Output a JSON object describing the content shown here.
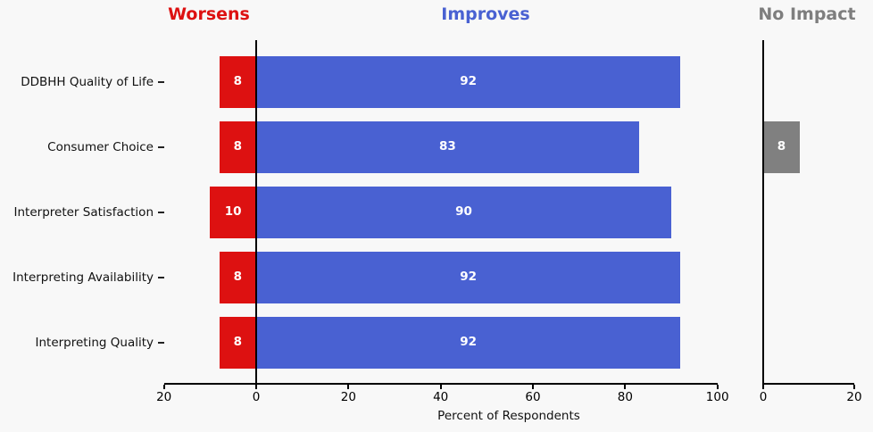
{
  "colors": {
    "background": "#f8f8f8",
    "worsens": "#dd1111",
    "improves": "#4961d2",
    "no_impact": "#808080",
    "no_impact_title": "#7e7e7e",
    "axis": "#000000",
    "category_text": "#111111",
    "value_text": "#ffffff"
  },
  "chart_data": {
    "type": "bar",
    "orientation": "horizontal",
    "xlabel": "Percent of Respondents",
    "categories": [
      "DDBHH Quality of Life",
      "Consumer Choice",
      "Interpreter Satisfaction",
      "Interpreting Availability",
      "Interpreting Quality"
    ],
    "series": [
      {
        "name": "Worsens",
        "color": "#dd1111",
        "direction": "left",
        "values": [
          8,
          8,
          10,
          8,
          8
        ]
      },
      {
        "name": "Improves",
        "color": "#4961d2",
        "direction": "right",
        "values": [
          92,
          83,
          90,
          92,
          92
        ]
      },
      {
        "name": "No Impact",
        "color": "#808080",
        "direction": "right",
        "values": [
          null,
          8,
          null,
          null,
          null
        ]
      }
    ],
    "value_labels_shown": true,
    "main_axis": {
      "range": [
        -20,
        100
      ],
      "ticks": [
        -20,
        0,
        20,
        40,
        60,
        80,
        100
      ],
      "tick_labels": [
        "20",
        "0",
        "20",
        "40",
        "60",
        "80",
        "100"
      ]
    },
    "no_impact_axis": {
      "range": [
        0,
        20
      ],
      "ticks": [
        0,
        20
      ],
      "tick_labels": [
        "0",
        "20"
      ]
    },
    "legend_position": "panel-titles-top",
    "grid": false
  }
}
